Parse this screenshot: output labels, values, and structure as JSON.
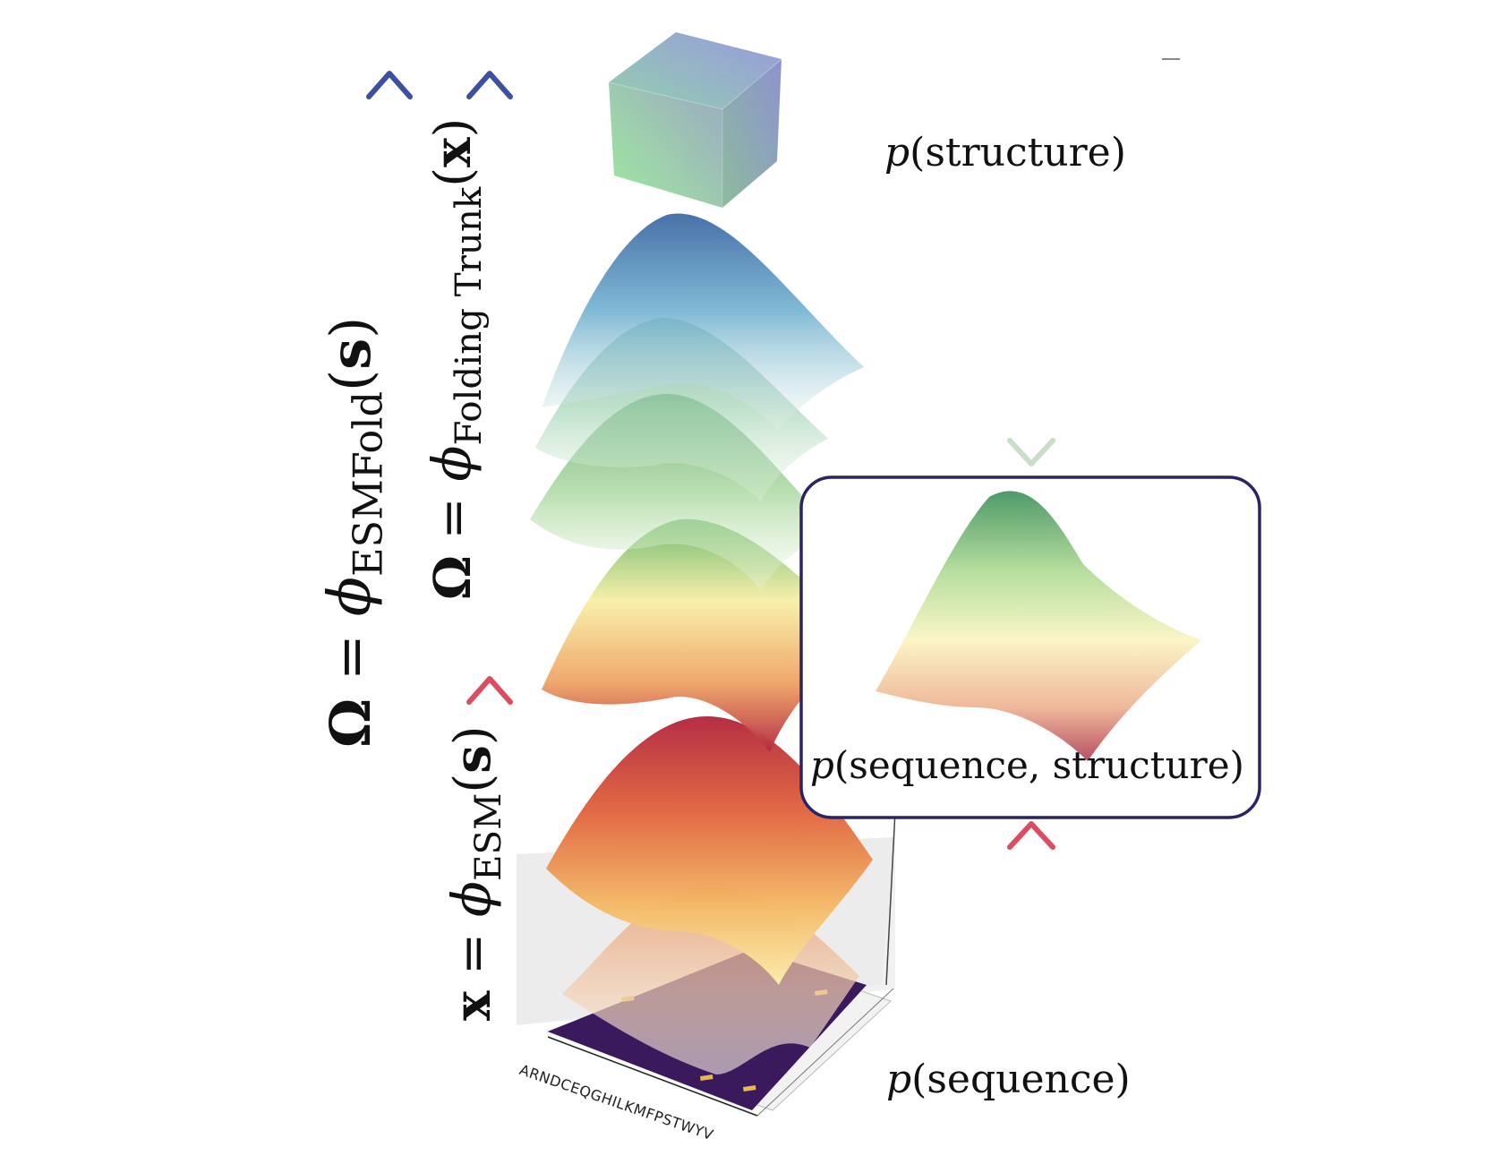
{
  "labels": {
    "omega_esmfold": {
      "lhs": "Ω",
      "eq": "=",
      "phi": "ϕ",
      "sub": "ESMFold",
      "arg": "s"
    },
    "omega_folding_trunk": {
      "lhs": "Ω",
      "eq": "=",
      "phi": "ϕ",
      "sub": "Folding Trunk",
      "arg": "x"
    },
    "x_esm": {
      "lhs": "x",
      "eq": "=",
      "phi": "ϕ",
      "sub": "ESM",
      "arg": "s"
    },
    "p_structure": {
      "p": "p",
      "text": "(structure)"
    },
    "p_joint": {
      "p": "p",
      "text": "(sequence, structure)"
    },
    "p_sequence": {
      "p": "p",
      "text": "(sequence)"
    },
    "amino_acids": "ARNDCEQGHILKMFPSTWYV"
  },
  "colors": {
    "arrow_blue": "#3d4fa1",
    "arrow_orange": "#f2c07a",
    "arrow_red": "#dc4d62",
    "arrow_pale_green": "#c8dfc6",
    "box_border": "#2a2466",
    "heatmap": "#3a1a5c"
  }
}
